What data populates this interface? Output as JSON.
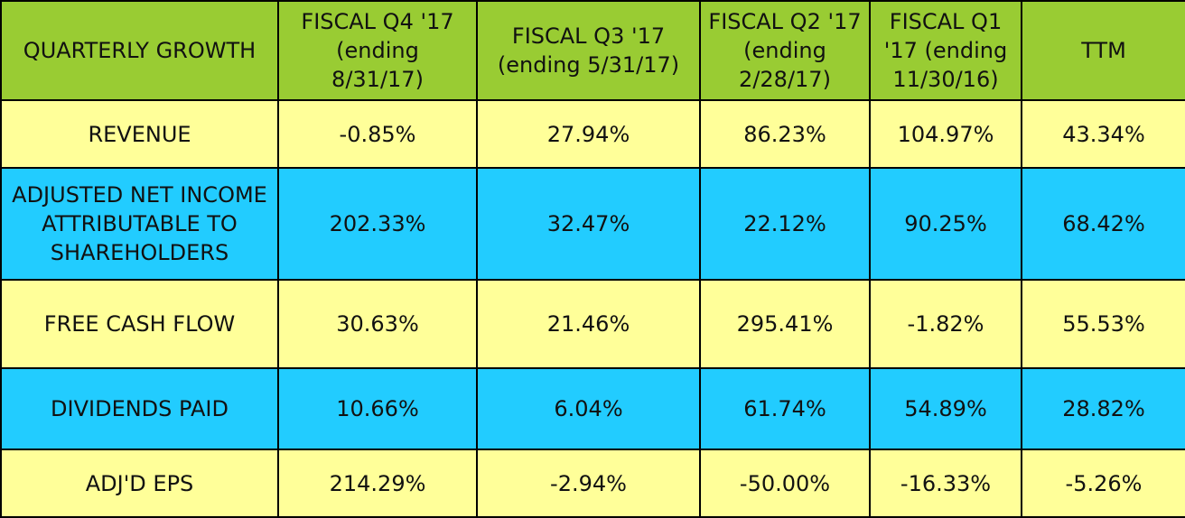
{
  "table": {
    "headers": [
      "QUARTERLY  GROWTH",
      "FISCAL Q4 '17\n(ending\n8/31/17)",
      "FISCAL Q3 '17\n(ending 5/31/17)",
      "FISCAL Q2 '17\n(ending\n2/28/17)",
      "FISCAL Q1\n'17 (ending\n11/30/16)",
      "TTM"
    ],
    "rows": [
      {
        "label": "REVENUE",
        "values": [
          "-0.85%",
          "27.94%",
          "86.23%",
          "104.97%",
          "43.34%"
        ]
      },
      {
        "label": "ADJUSTED NET INCOME\nATTRIBUTABLE TO\nSHAREHOLDERS",
        "values": [
          "202.33%",
          "32.47%",
          "22.12%",
          "90.25%",
          "68.42%"
        ]
      },
      {
        "label": "FREE CASH FLOW",
        "values": [
          "30.63%",
          "21.46%",
          "295.41%",
          "-1.82%",
          "55.53%"
        ]
      },
      {
        "label": "DIVIDENDS PAID",
        "values": [
          "10.66%",
          "6.04%",
          "61.74%",
          "54.89%",
          "28.82%"
        ]
      },
      {
        "label": "ADJ'D EPS",
        "values": [
          "214.29%",
          "-2.94%",
          "-50.00%",
          "-16.33%",
          "-5.26%"
        ]
      }
    ]
  },
  "colors": {
    "header_bg": "#99cc33",
    "row_yellow": "#ffff99",
    "row_blue": "#22ccff",
    "border": "#000000"
  }
}
